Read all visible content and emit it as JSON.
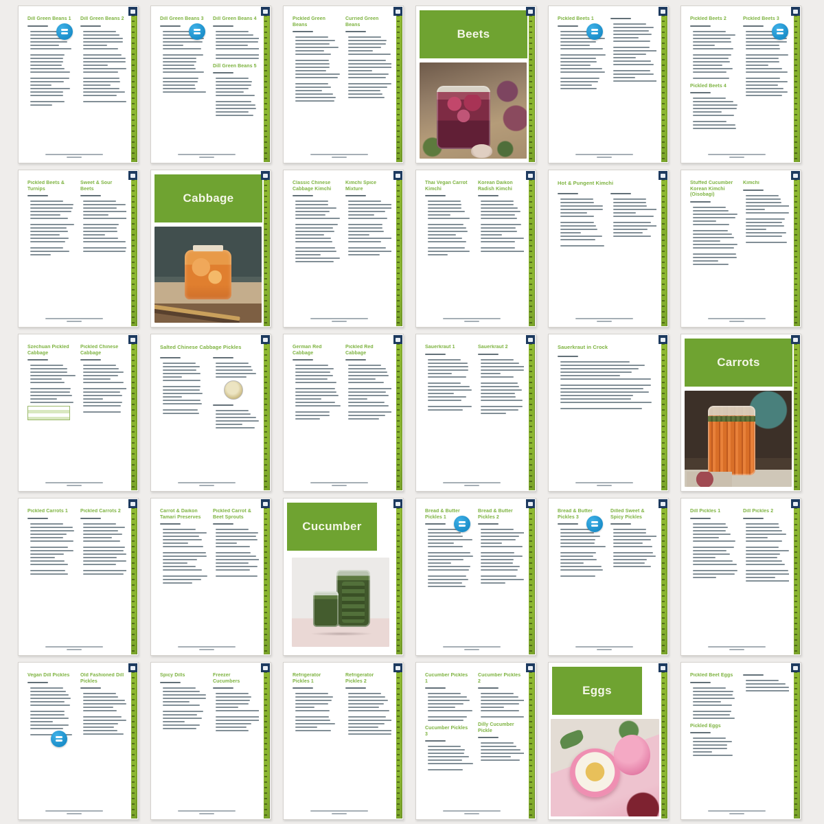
{
  "app": {
    "description": "Pickling recipes ebook page-thumbnail overview grid",
    "rows": 5,
    "cols": 6
  },
  "colors": {
    "board_bg": "#EFEDEB",
    "page_bg": "#FFFFFF",
    "banner_green": "#6FA331",
    "title_green": "#7CB23E",
    "ruler_green": "#86B32D",
    "badge_blue": "#1E96D0",
    "corner_navy": "#1D3A5F"
  },
  "icons": {
    "corner": "jar-icon",
    "badge": "equals-badge-icon"
  },
  "sections": [
    "Beets",
    "Cabbage",
    "Carrots",
    "Cucumber",
    "Eggs"
  ],
  "pages": [
    {
      "type": "recipe",
      "blocks": [
        {
          "c": "l",
          "t": "Dill Green Beans 1",
          "n": 20,
          "b": "t"
        },
        {
          "c": "r",
          "t": "Dill Green Beans 2",
          "n": 19
        }
      ]
    },
    {
      "type": "recipe",
      "blocks": [
        {
          "c": "l",
          "t": "Dill Green Beans 3",
          "n": 17,
          "b": "t"
        },
        {
          "c": "r",
          "t": "Dill Green Beans 4",
          "n": 8
        },
        {
          "c": "r",
          "t": "Dill Green Beans 5",
          "n": 11
        }
      ]
    },
    {
      "type": "recipe",
      "blocks": [
        {
          "c": "l",
          "t": "Pickled Green Beans",
          "n": 18
        },
        {
          "c": "r",
          "t": "Curried Green Beans",
          "n": 17
        }
      ]
    },
    {
      "type": "divider",
      "title": "Beets",
      "photo": "beets",
      "narrow": false
    },
    {
      "type": "recipe",
      "blocks": [
        {
          "c": "l",
          "t": "Pickled Beets 1",
          "n": 16,
          "b": "t"
        },
        {
          "c": "r",
          "t": "",
          "n": 16
        }
      ]
    },
    {
      "type": "recipe",
      "blocks": [
        {
          "c": "l",
          "t": "Pickled Beets 2",
          "n": 13
        },
        {
          "c": "r",
          "t": "Pickled Beets 3",
          "n": 18,
          "b": "t"
        },
        {
          "c": "l",
          "t": "Pickled Beets 4",
          "n": 9
        }
      ]
    },
    {
      "type": "recipe",
      "blocks": [
        {
          "c": "l",
          "t": "Pickled Beets & Turnips",
          "n": 15
        },
        {
          "c": "r",
          "t": "Sweet & Sour Beets",
          "n": 14
        }
      ]
    },
    {
      "type": "divider",
      "title": "Cabbage",
      "photo": "cabbage",
      "narrow": false
    },
    {
      "type": "recipe",
      "blocks": [
        {
          "c": "l",
          "t": "Classic Chinese Cabbage Kimchi",
          "n": 17
        },
        {
          "c": "r",
          "t": "Kimchi Spice Mixture",
          "n": 15
        }
      ]
    },
    {
      "type": "recipe",
      "blocks": [
        {
          "c": "l",
          "t": "Thai Vegan Carrot Kimchi",
          "n": 15
        },
        {
          "c": "r",
          "t": "Korean Daikon Radish Kimchi",
          "n": 14
        }
      ]
    },
    {
      "type": "recipe",
      "blocks": [
        {
          "c": "s",
          "t": "Hot & Pungent Kimchi",
          "n": 0
        },
        {
          "c": "l",
          "t": "",
          "n": 13
        },
        {
          "c": "r",
          "t": "",
          "n": 11
        }
      ]
    },
    {
      "type": "recipe",
      "blocks": [
        {
          "c": "l",
          "t": "Stuffed Cucumber Korean Kimchi (Oisobagi)",
          "n": 16
        },
        {
          "c": "r",
          "t": "Kimchi",
          "n": 13
        }
      ]
    },
    {
      "type": "recipe",
      "blocks": [
        {
          "c": "l",
          "t": "Szechuan Pickled Cabbage",
          "n": 11,
          "x": "table"
        },
        {
          "c": "r",
          "t": "Pickled Chinese Cabbage",
          "n": 13
        }
      ]
    },
    {
      "type": "recipe",
      "blocks": [
        {
          "c": "s",
          "t": "Salted Chinese Cabbage Pickles",
          "n": 0
        },
        {
          "c": "l",
          "t": "",
          "n": 14
        },
        {
          "c": "r",
          "t": "",
          "n": 5,
          "x": "dot"
        },
        {
          "c": "r",
          "t": "",
          "n": 6
        }
      ]
    },
    {
      "type": "recipe",
      "blocks": [
        {
          "c": "l",
          "t": "German Red Cabbage",
          "n": 15
        },
        {
          "c": "r",
          "t": "Pickled Red Cabbage",
          "n": 15
        }
      ]
    },
    {
      "type": "recipe",
      "blocks": [
        {
          "c": "l",
          "t": "Sauerkraut 1",
          "n": 14
        },
        {
          "c": "r",
          "t": "Sauerkraut 2",
          "n": 15
        }
      ]
    },
    {
      "type": "recipe",
      "blocks": [
        {
          "c": "s",
          "t": "Sauerkraut in Crock",
          "n": 0
        },
        {
          "c": "w",
          "t": "",
          "n": 13
        }
      ]
    },
    {
      "type": "divider",
      "title": "Carrots",
      "photo": "carrots",
      "narrow": false
    },
    {
      "type": "recipe",
      "blocks": [
        {
          "c": "l",
          "t": "Pickled Carrots 1",
          "n": 14
        },
        {
          "c": "r",
          "t": "Pickled Carrots 2",
          "n": 14
        }
      ]
    },
    {
      "type": "recipe",
      "blocks": [
        {
          "c": "l",
          "t": "Carrot & Daikon Tamari Preserves",
          "n": 15
        },
        {
          "c": "r",
          "t": "Pickled Carrot & Beet Sprouts",
          "n": 13
        }
      ]
    },
    {
      "type": "divider",
      "title": "Cucumber",
      "photo": "cucumber",
      "narrow": true
    },
    {
      "type": "recipe",
      "blocks": [
        {
          "c": "l",
          "t": "Bread & Butter Pickles 1",
          "n": 16,
          "b": "t"
        },
        {
          "c": "r",
          "t": "Bread & Butter Pickles 2",
          "n": 15
        }
      ]
    },
    {
      "type": "recipe",
      "blocks": [
        {
          "c": "l",
          "t": "Bread & Butter Pickles 3",
          "n": 13,
          "b": "t"
        },
        {
          "c": "r",
          "t": "Dilled Sweet & Spicy Pickles",
          "n": 11
        }
      ]
    },
    {
      "type": "recipe",
      "blocks": [
        {
          "c": "l",
          "t": "Dill Pickles 1",
          "n": 15
        },
        {
          "c": "r",
          "t": "Dill Pickles 2",
          "n": 16
        }
      ]
    },
    {
      "type": "recipe",
      "blocks": [
        {
          "c": "l",
          "t": "Vegan Dill Pickles",
          "n": 13,
          "b": "m"
        },
        {
          "c": "r",
          "t": "Old Fashioned Dill Pickles",
          "n": 12
        }
      ]
    },
    {
      "type": "recipe",
      "blocks": [
        {
          "c": "l",
          "t": "Spicy Dills",
          "n": 12
        },
        {
          "c": "r",
          "t": "Freezer Cucumbers",
          "n": 11
        }
      ]
    },
    {
      "type": "recipe",
      "blocks": [
        {
          "c": "l",
          "t": "Refrigerator Pickles 1",
          "n": 11
        },
        {
          "c": "r",
          "t": "Refrigerator Pickles 2",
          "n": 12
        }
      ]
    },
    {
      "type": "recipe",
      "blocks": [
        {
          "c": "l",
          "t": "Cucumber Pickles 1",
          "n": 8
        },
        {
          "c": "r",
          "t": "Cucumber Pickles 2",
          "n": 7
        },
        {
          "c": "l",
          "t": "Cucumber Pickles 3",
          "n": 7
        },
        {
          "c": "r",
          "t": "Dilly Cucumber Pickle",
          "n": 6
        }
      ]
    },
    {
      "type": "divider",
      "title": "Eggs",
      "photo": "eggs",
      "narrow": true
    },
    {
      "type": "recipe",
      "blocks": [
        {
          "c": "l",
          "t": "Pickled Beet Eggs",
          "n": 9
        },
        {
          "c": "r",
          "t": "",
          "n": 4
        },
        {
          "c": "l",
          "t": "Pickled Eggs",
          "n": 6
        }
      ]
    }
  ]
}
